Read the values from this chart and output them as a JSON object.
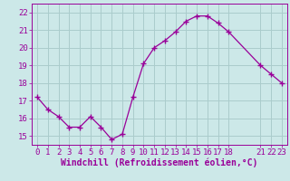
{
  "x": [
    0,
    1,
    2,
    3,
    4,
    5,
    6,
    7,
    8,
    9,
    10,
    11,
    12,
    13,
    14,
    15,
    16,
    17,
    18,
    21,
    22,
    23
  ],
  "y": [
    17.2,
    16.5,
    16.1,
    15.5,
    15.5,
    16.1,
    15.5,
    14.8,
    15.1,
    17.2,
    19.1,
    20.0,
    20.4,
    20.9,
    21.5,
    21.8,
    21.8,
    21.4,
    20.9,
    19.0,
    18.5,
    18.0
  ],
  "line_color": "#990099",
  "marker": "+",
  "marker_size": 4,
  "bg_color": "#cce8e8",
  "grid_color": "#aacccc",
  "xlabel": "Windchill (Refroidissement éolien,°C)",
  "xlim": [
    -0.5,
    23.5
  ],
  "ylim": [
    14.5,
    22.5
  ],
  "yticks": [
    15,
    16,
    17,
    18,
    19,
    20,
    21,
    22
  ],
  "xticks": [
    0,
    1,
    2,
    3,
    4,
    5,
    6,
    7,
    8,
    9,
    10,
    11,
    12,
    13,
    14,
    15,
    16,
    17,
    18,
    21,
    22,
    23
  ],
  "font_color": "#990099",
  "tick_fontsize": 6.5,
  "xlabel_fontsize": 7.0
}
